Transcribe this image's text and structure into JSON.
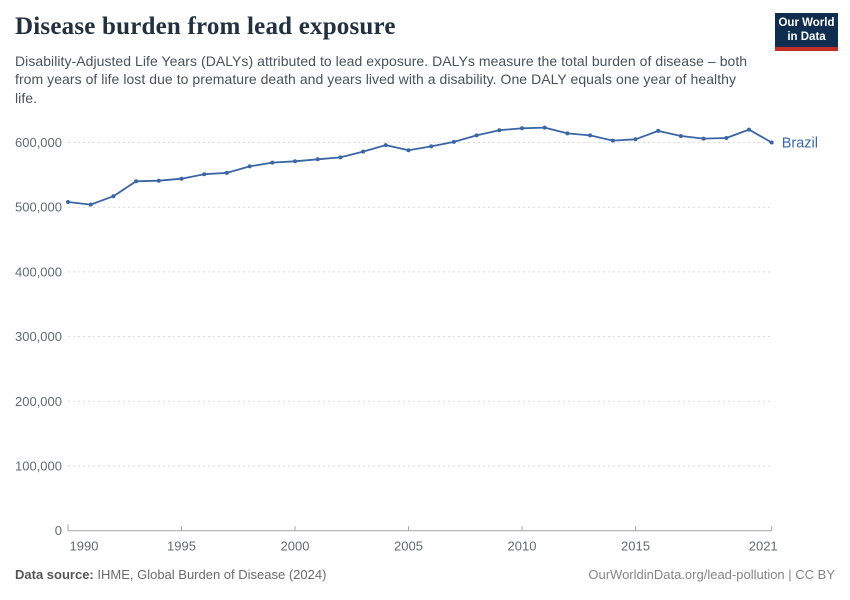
{
  "header": {
    "title": "Disease burden from lead exposure",
    "subtitle": "Disability-Adjusted Life Years (DALYs) attributed to lead exposure. DALYs measure the total burden of disease – both from years of life lost due to premature death and years lived with a disability. One DALY equals one year of healthy life.",
    "logo": {
      "line1": "Our World",
      "line2": "in Data",
      "bg_color": "#0f2d4e",
      "accent_color": "#c22d26"
    }
  },
  "chart_data": {
    "type": "line",
    "title": "Disease burden from lead exposure",
    "x": [
      1990,
      1991,
      1992,
      1993,
      1994,
      1995,
      1996,
      1997,
      1998,
      1999,
      2000,
      2001,
      2002,
      2003,
      2004,
      2005,
      2006,
      2007,
      2008,
      2009,
      2010,
      2011,
      2012,
      2013,
      2014,
      2015,
      2016,
      2017,
      2018,
      2019,
      2020,
      2021
    ],
    "series": [
      {
        "name": "Brazil",
        "color": "#3a66a5",
        "values": [
          508000,
          504000,
          517000,
          540000,
          541000,
          544000,
          551000,
          553000,
          563000,
          569000,
          571000,
          574000,
          577000,
          586000,
          596000,
          588000,
          594000,
          601000,
          611000,
          619000,
          622000,
          623000,
          614000,
          611000,
          603000,
          605000,
          618000,
          610000,
          606000,
          607000,
          620000,
          600000
        ]
      }
    ],
    "x_ticks": [
      1990,
      1995,
      2000,
      2005,
      2010,
      2015,
      2021
    ],
    "y_ticks": [
      {
        "value": 0,
        "label": "0"
      },
      {
        "value": 100000,
        "label": "100,000"
      },
      {
        "value": 200000,
        "label": "200,000"
      },
      {
        "value": 300000,
        "label": "300,000"
      },
      {
        "value": 400000,
        "label": "400,000"
      },
      {
        "value": 500000,
        "label": "500,000"
      },
      {
        "value": 600000,
        "label": "600,000"
      }
    ],
    "xlim": [
      1990,
      2021
    ],
    "ylim": [
      0,
      650000
    ],
    "grid": "horizontal-dashed",
    "legend_position": "end-of-line"
  },
  "footer": {
    "source_label": "Data source:",
    "source_text": " IHME, Global Burden of Disease (2024)",
    "credit": "OurWorldinData.org/lead-pollution | CC BY"
  }
}
